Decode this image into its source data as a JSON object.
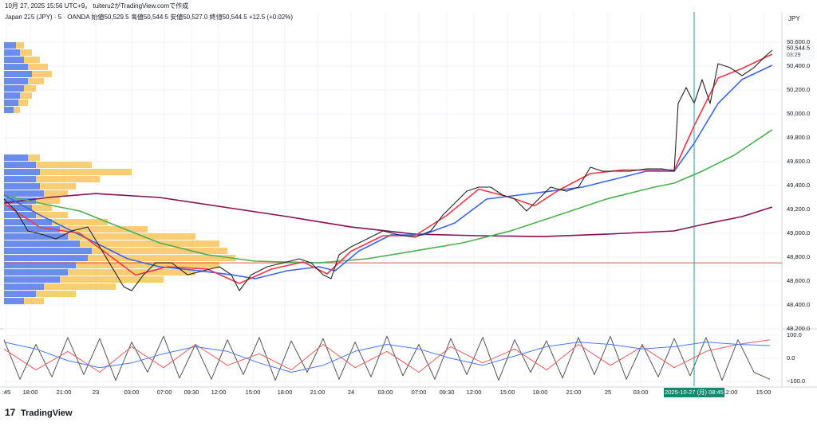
{
  "chart_data": {
    "type": "line",
    "title": "10月 27, 2025 15:56 UTC+9。 tuiteru2がTradingView.comで作成",
    "subtitle": "Japan 225 (JPY) · 5 · OANDA  始値50,529.5 高値50,544.5 安値50,527.0 終値50,544.5 +12.5 (+0.02%)",
    "currency": "JPY",
    "last_price": 50544.5,
    "last_price_label": "50,544.5",
    "countdown": "03:29",
    "crosshair": {
      "x": 870,
      "label": "2025-10-27 (月)  08:45"
    },
    "hline": 48753,
    "hline_color": "#e0574a",
    "logo": "TradingView",
    "xlim": [
      5,
      980
    ],
    "ylim": [
      48207,
      50853
    ],
    "yticks": [
      {
        "value": 48200,
        "label": "48,200.0"
      },
      {
        "value": 48400,
        "label": "48,400.0"
      },
      {
        "value": 48600,
        "label": "48,600.0"
      },
      {
        "value": 48800,
        "label": "48,800.0"
      },
      {
        "value": 49000,
        "label": "49,000.0"
      },
      {
        "value": 49200,
        "label": "49,200.0"
      },
      {
        "value": 49400,
        "label": "49,400.0"
      },
      {
        "value": 49600,
        "label": "49,600.0"
      },
      {
        "value": 49800,
        "label": "49,800.0"
      },
      {
        "value": 50000,
        "label": "50,000.0"
      },
      {
        "value": 50200,
        "label": "50,200.0"
      },
      {
        "value": 50400,
        "label": "50,400.0"
      },
      {
        "value": 50600,
        "label": "50,600.0"
      }
    ],
    "xticks": [
      {
        "value": 8,
        "label": ":45"
      },
      {
        "value": 38,
        "label": "18:00"
      },
      {
        "value": 80,
        "label": "21:00"
      },
      {
        "value": 120,
        "label": "23"
      },
      {
        "value": 165,
        "label": "03:00"
      },
      {
        "value": 206,
        "label": "07:00"
      },
      {
        "value": 240,
        "label": "09:30"
      },
      {
        "value": 274,
        "label": "12:00"
      },
      {
        "value": 317,
        "label": "15:00"
      },
      {
        "value": 357,
        "label": "18:00"
      },
      {
        "value": 398,
        "label": "21:00"
      },
      {
        "value": 440,
        "label": "24"
      },
      {
        "value": 483,
        "label": "03:00"
      },
      {
        "value": 525,
        "label": "07:00"
      },
      {
        "value": 560,
        "label": "09:30"
      },
      {
        "value": 594,
        "label": "12:00"
      },
      {
        "value": 636,
        "label": "15:00"
      },
      {
        "value": 677,
        "label": "18:00"
      },
      {
        "value": 719,
        "label": "21:00"
      },
      {
        "value": 762,
        "label": "25"
      },
      {
        "value": 803,
        "label": "03:00"
      },
      {
        "value": 915,
        "label": "12:00"
      },
      {
        "value": 957,
        "label": "15:00"
      }
    ],
    "grid": true,
    "series": [
      {
        "color": "#880e4f",
        "x": [
          5,
          60,
          120,
          200,
          280,
          360,
          440,
          520,
          600,
          680,
          760,
          845,
          880,
          930,
          968
        ],
        "values": [
          49253,
          49300,
          49333,
          49300,
          49220,
          49140,
          49053,
          48993,
          48980,
          48973,
          48993,
          49020,
          49073,
          49140,
          49220
        ]
      },
      {
        "color": "#4caf50",
        "x": [
          5,
          50,
          100,
          150,
          200,
          260,
          320,
          400,
          460,
          520,
          580,
          640,
          700,
          760,
          820,
          845,
          880,
          920,
          968
        ],
        "values": [
          49320,
          49253,
          49187,
          49053,
          48920,
          48820,
          48767,
          48753,
          48787,
          48853,
          48920,
          49020,
          49153,
          49287,
          49387,
          49420,
          49520,
          49653,
          49867
        ]
      },
      {
        "color": "#3a66e8",
        "x": [
          5,
          50,
          100,
          130,
          160,
          200,
          250,
          290,
          320,
          360,
          400,
          420,
          450,
          490,
          530,
          570,
          610,
          650,
          690,
          730,
          770,
          810,
          845,
          870,
          900,
          930,
          968
        ],
        "values": [
          49320,
          49153,
          48987,
          48887,
          48787,
          48720,
          48687,
          48653,
          48620,
          48687,
          48720,
          48687,
          48853,
          48987,
          48987,
          49087,
          49287,
          49320,
          49353,
          49387,
          49453,
          49520,
          49520,
          49753,
          50087,
          50287,
          50407
        ]
      },
      {
        "color": "#f23645",
        "x": [
          5,
          50,
          100,
          140,
          170,
          210,
          260,
          300,
          340,
          380,
          410,
          440,
          480,
          520,
          560,
          600,
          640,
          670,
          700,
          740,
          780,
          845,
          870,
          900,
          930,
          968
        ],
        "values": [
          49250,
          49050,
          49000,
          48800,
          48650,
          48720,
          48700,
          48580,
          48700,
          48760,
          48660,
          48850,
          48980,
          48980,
          49150,
          49370,
          49300,
          49230,
          49360,
          49500,
          49530,
          49530,
          49900,
          50300,
          50380,
          50500
        ]
      },
      {
        "color": "#222222",
        "x": [
          5,
          20,
          35,
          55,
          70,
          90,
          110,
          125,
          140,
          155,
          165,
          180,
          195,
          215,
          235,
          255,
          275,
          290,
          300,
          315,
          335,
          355,
          375,
          390,
          405,
          415,
          425,
          440,
          460,
          480,
          500,
          520,
          540,
          555,
          570,
          585,
          600,
          615,
          630,
          645,
          660,
          675,
          690,
          710,
          725,
          740,
          755,
          770,
          790,
          810,
          830,
          845,
          850,
          860,
          870,
          880,
          890,
          900,
          915,
          930,
          945,
          960,
          968
        ],
        "values": [
          49287,
          49187,
          49020,
          48987,
          48953,
          49020,
          49053,
          48887,
          48720,
          48553,
          48520,
          48653,
          48753,
          48753,
          48653,
          48687,
          48720,
          48653,
          48520,
          48653,
          48720,
          48753,
          48787,
          48753,
          48653,
          48620,
          48820,
          48887,
          48953,
          49020,
          48987,
          48967,
          49020,
          49153,
          49253,
          49353,
          49387,
          49387,
          49320,
          49287,
          49187,
          49287,
          49387,
          49353,
          49387,
          49553,
          49520,
          49520,
          49520,
          49540,
          49540,
          49520,
          50087,
          50220,
          50087,
          50287,
          50087,
          50420,
          50387,
          50320,
          50387,
          50487,
          50533
        ]
      }
    ],
    "volume_profile": {
      "colors": [
        "#5b7fe8",
        "#f7c45c"
      ],
      "bin_height": 60,
      "prices": [
        50573,
        50513,
        50453,
        50393,
        50333,
        50273,
        50213,
        50153,
        50093,
        50033,
        49633,
        49573,
        49513,
        49453,
        49393,
        49333,
        49273,
        49213,
        49153,
        49093,
        49033,
        48973,
        48913,
        48853,
        48793,
        48733,
        48673,
        48613,
        48553,
        48493,
        48433
      ],
      "down": [
        15,
        20,
        25,
        30,
        35,
        30,
        25,
        20,
        18,
        12,
        30,
        40,
        45,
        40,
        45,
        50,
        40,
        35,
        40,
        60,
        70,
        80,
        95,
        110,
        105,
        90,
        80,
        70,
        50,
        40,
        25
      ],
      "up": [
        10,
        15,
        20,
        25,
        25,
        20,
        15,
        15,
        12,
        8,
        15,
        70,
        115,
        80,
        45,
        30,
        30,
        25,
        40,
        70,
        110,
        160,
        175,
        170,
        185,
        180,
        160,
        130,
        90,
        50,
        25
      ]
    },
    "oscillator": {
      "ylim": [
        -120,
        120
      ],
      "yticks": [
        {
          "value": 100,
          "label": "100.0"
        },
        {
          "value": 0,
          "label": "0.0"
        },
        {
          "value": -100,
          "label": "−100.0"
        }
      ],
      "series": [
        {
          "color": "#555555",
          "x": [
            5,
            25,
            45,
            65,
            85,
            105,
            125,
            145,
            165,
            185,
            205,
            225,
            245,
            265,
            285,
            305,
            325,
            345,
            365,
            385,
            405,
            425,
            445,
            465,
            485,
            505,
            525,
            545,
            565,
            585,
            605,
            625,
            645,
            665,
            685,
            705,
            725,
            745,
            765,
            785,
            805,
            825,
            845,
            865,
            885,
            905,
            925,
            945,
            965
          ],
          "values": [
            80,
            -90,
            60,
            -80,
            90,
            -70,
            85,
            -95,
            70,
            -60,
            95,
            -85,
            60,
            -90,
            80,
            -70,
            90,
            -95,
            75,
            -60,
            85,
            -90,
            70,
            -80,
            95,
            -75,
            60,
            -90,
            85,
            -70,
            90,
            -95,
            80,
            -60,
            75,
            -85,
            90,
            -70,
            95,
            -90,
            60,
            -80,
            85,
            -75,
            90,
            -95,
            80,
            -60,
            -90
          ]
        },
        {
          "color": "#f05a5a",
          "x": [
            5,
            45,
            85,
            125,
            165,
            205,
            245,
            285,
            325,
            365,
            405,
            445,
            485,
            525,
            565,
            605,
            645,
            685,
            725,
            765,
            805,
            845,
            885,
            925,
            965
          ],
          "values": [
            40,
            -50,
            30,
            -60,
            50,
            -40,
            60,
            -30,
            20,
            -50,
            60,
            -40,
            30,
            -60,
            50,
            -20,
            40,
            -50,
            60,
            -30,
            50,
            -40,
            30,
            60,
            80
          ]
        },
        {
          "color": "#4a78e6",
          "x": [
            5,
            45,
            85,
            125,
            165,
            205,
            245,
            285,
            325,
            365,
            405,
            445,
            485,
            525,
            565,
            605,
            645,
            685,
            725,
            765,
            805,
            845,
            885,
            925,
            965
          ],
          "values": [
            70,
            40,
            -10,
            -40,
            -20,
            20,
            50,
            30,
            -20,
            -60,
            -30,
            30,
            60,
            40,
            0,
            -30,
            10,
            50,
            70,
            60,
            40,
            50,
            70,
            60,
            55
          ]
        }
      ]
    }
  }
}
